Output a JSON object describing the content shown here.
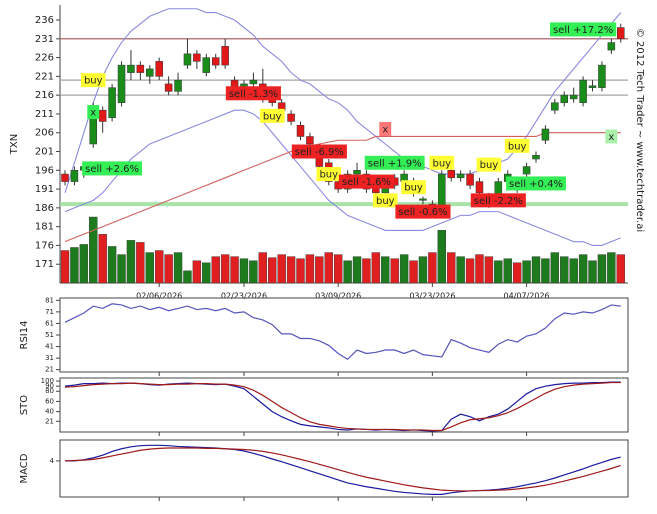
{
  "chart_data": [
    {
      "type": "candlestick",
      "y_label": "TXN",
      "categories": [
        null,
        null,
        null,
        null,
        null,
        null,
        null,
        null,
        null,
        null,
        "02/06/2026",
        null,
        null,
        null,
        null,
        null,
        null,
        null,
        null,
        "02/23/2026",
        null,
        null,
        null,
        null,
        null,
        null,
        null,
        null,
        null,
        "03/09/2026",
        null,
        null,
        null,
        null,
        null,
        null,
        null,
        null,
        null,
        "03/23/2026",
        null,
        null,
        null,
        null,
        null,
        null,
        null,
        null,
        null,
        "04/07/2026",
        null,
        null,
        null,
        null,
        null,
        null,
        null,
        null,
        null,
        null
      ],
      "open": [
        195,
        193,
        196,
        203,
        212,
        210,
        214,
        222,
        224,
        221,
        225,
        219,
        217,
        224,
        227,
        222,
        226,
        229,
        220,
        218,
        219,
        219,
        216,
        214,
        211,
        208,
        205,
        202,
        198,
        193,
        191,
        195,
        195,
        192,
        190,
        194,
        193,
        193,
        188,
        187,
        186,
        196,
        194,
        195,
        193,
        189,
        189,
        193,
        193,
        195,
        199,
        204,
        212,
        214,
        215,
        214,
        218,
        218,
        228,
        234
      ],
      "high": [
        196,
        197,
        198,
        214,
        213,
        219,
        225,
        228,
        225,
        224,
        226,
        221,
        222,
        231,
        228,
        227,
        227,
        231,
        221,
        220,
        222,
        223,
        217,
        215,
        212,
        209,
        206,
        203,
        199,
        194,
        196,
        198,
        196,
        193,
        194,
        195,
        196,
        194,
        189,
        188,
        196,
        197,
        196,
        196,
        194,
        190,
        194,
        196,
        194,
        198,
        201,
        208,
        215,
        217,
        218,
        221,
        220,
        225,
        231,
        235
      ],
      "low": [
        192,
        192,
        194,
        202,
        206,
        209,
        213,
        220,
        220,
        219,
        220,
        216,
        216,
        223,
        223,
        221,
        223,
        223,
        217,
        217,
        218,
        214,
        213,
        211,
        208,
        204,
        202,
        196,
        192,
        190,
        190,
        194,
        190,
        188,
        189,
        191,
        192,
        189,
        187,
        185,
        185,
        193,
        193,
        191,
        189,
        186,
        188,
        192,
        190,
        194,
        198,
        203,
        211,
        213,
        214,
        213,
        217,
        217,
        227,
        230
      ],
      "close": [
        193,
        196,
        197,
        212,
        209,
        218,
        224,
        224,
        222,
        223,
        221,
        217,
        220,
        227,
        225,
        226,
        224,
        224,
        218,
        219,
        220,
        216,
        214,
        212,
        209,
        205,
        203,
        197,
        193,
        191,
        195,
        196,
        191,
        190,
        193,
        192,
        195,
        190,
        188.4,
        186,
        195,
        194,
        195,
        192,
        190,
        188,
        193,
        195,
        191,
        197,
        200,
        207,
        214,
        216,
        216,
        220,
        218.5,
        224,
        230,
        231
      ],
      "volume": [
        32,
        35,
        38,
        65,
        48,
        36,
        28,
        42,
        40,
        30,
        32,
        28,
        30,
        12,
        22,
        20,
        26,
        28,
        26,
        24,
        22,
        30,
        25,
        28,
        26,
        24,
        28,
        26,
        30,
        28,
        22,
        26,
        24,
        30,
        26,
        24,
        28,
        22,
        26,
        30,
        52,
        30,
        26,
        24,
        28,
        26,
        22,
        24,
        20,
        22,
        26,
        24,
        30,
        26,
        24,
        28,
        22,
        28,
        30,
        28
      ],
      "up_color": "#1a8c1a",
      "down_color": "#e01818",
      "ylim": [
        166,
        240
      ],
      "yticks": [
        171,
        176,
        181,
        186,
        191,
        196,
        201,
        206,
        211,
        216,
        221,
        226,
        231,
        236
      ],
      "series": [
        {
          "color": "#8a8ae0",
          "values": [
            190,
            198,
            206,
            214,
            221,
            226,
            230,
            233,
            235,
            237,
            238,
            239,
            239,
            239,
            239,
            238,
            238,
            237,
            236,
            234,
            232,
            229,
            227,
            225,
            222,
            220,
            219,
            217,
            215,
            214,
            212,
            209,
            207,
            205,
            203,
            201,
            199,
            198,
            197,
            196,
            195,
            195,
            195,
            195,
            196,
            197,
            198,
            199,
            202,
            205,
            209,
            213,
            217,
            220,
            223,
            226,
            229,
            232,
            235,
            238
          ]
        },
        {
          "color": "#8a8ae0",
          "values": [
            185,
            186,
            187,
            188,
            190,
            193,
            196,
            199,
            201,
            203,
            204,
            205,
            206,
            207,
            208,
            209,
            210,
            211,
            212,
            212,
            211,
            209,
            206,
            203,
            200,
            197,
            194,
            191,
            188,
            186,
            184,
            183,
            182,
            181,
            180,
            180,
            180,
            180,
            180,
            181,
            182,
            183,
            184,
            184,
            185,
            185,
            185,
            184,
            183,
            182,
            181,
            180,
            179,
            178,
            177,
            177,
            176,
            176,
            177,
            178
          ]
        },
        {
          "color": "#d06060",
          "values": [
            177,
            178,
            179,
            180,
            181,
            182,
            183,
            184,
            185,
            186,
            187,
            188,
            189,
            190,
            191,
            192,
            193,
            194,
            195,
            196,
            197,
            198,
            199,
            200,
            201,
            202,
            202.5,
            203,
            203.5,
            204,
            204,
            204,
            204,
            205,
            205,
            205,
            205,
            205,
            205,
            205,
            205,
            205,
            205,
            205,
            205,
            205,
            205,
            205,
            205,
            205,
            205,
            206,
            206,
            206,
            206,
            206,
            206,
            206,
            206,
            206
          ]
        }
      ],
      "levels": [
        {
          "value": 231,
          "color": "#b07070"
        },
        {
          "value": 220,
          "color": "#aaaaaa"
        },
        {
          "value": 216,
          "color": "#aaaaaa"
        },
        {
          "value": 187,
          "color": "#9fe09f"
        }
      ],
      "signals": [
        {
          "label": "buy",
          "index": 3,
          "value": 220,
          "color": "#ffff33"
        },
        {
          "label": "x",
          "index": 3,
          "value": 211.5,
          "color": "#33ee55"
        },
        {
          "label": "sell +2.6%",
          "index": 5,
          "value": 196.5,
          "color": "#33ee55"
        },
        {
          "label": "sell -1.3%",
          "index": 20,
          "value": 216.5,
          "color": "#ee2222"
        },
        {
          "label": "buy",
          "index": 22,
          "value": 210.5,
          "color": "#ffff33"
        },
        {
          "label": "x",
          "index": 34,
          "value": 207,
          "color": "#ff7777"
        },
        {
          "label": "sell -6.9%",
          "index": 27,
          "value": 201,
          "color": "#ee2222"
        },
        {
          "label": "sell +1.9%",
          "index": 35,
          "value": 198,
          "color": "#33ee55"
        },
        {
          "label": "buy",
          "index": 28,
          "value": 195,
          "color": "#ffff33"
        },
        {
          "label": "buy",
          "index": 40,
          "value": 198,
          "color": "#ffff33"
        },
        {
          "label": "sell -1.6%",
          "index": 32,
          "value": 193,
          "color": "#ee2222"
        },
        {
          "label": "buy",
          "index": 34,
          "value": 188,
          "color": "#ffff33"
        },
        {
          "label": "buy",
          "index": 37,
          "value": 191.5,
          "color": "#ffff33"
        },
        {
          "label": "sell -0.6%",
          "index": 38,
          "value": 185,
          "color": "#ee2222"
        },
        {
          "label": "buy",
          "index": 45,
          "value": 197.5,
          "color": "#ffff33"
        },
        {
          "label": "buy",
          "index": 48,
          "value": 202.5,
          "color": "#ffff33"
        },
        {
          "label": "sell -2.2%",
          "index": 46,
          "value": 188,
          "color": "#ee2222"
        },
        {
          "label": "sell +0.4%",
          "index": 50,
          "value": 192.5,
          "color": "#33ee55"
        },
        {
          "label": "sell +17.2%",
          "index": 55,
          "value": 233.5,
          "color": "#33ee55"
        },
        {
          "label": "x",
          "index": 58,
          "value": 205,
          "color": "#aaf0aa"
        }
      ],
      "copyright": "© 2012 Tech Trader ~ www.techtrader.ai"
    },
    {
      "type": "line",
      "y_label": "RSI14",
      "ylim": [
        19,
        83
      ],
      "yticks": [
        21,
        31,
        41,
        51,
        61,
        71,
        81
      ],
      "series": [
        {
          "color": "#5555bb",
          "values": [
            62,
            66,
            70,
            76,
            74,
            78,
            77,
            74,
            76,
            73,
            75,
            72,
            74,
            76,
            73,
            74,
            72,
            74,
            70,
            71,
            66,
            64,
            60,
            52,
            52,
            48,
            48,
            46,
            42,
            35,
            30,
            38,
            35,
            36,
            38,
            38,
            35,
            38,
            34,
            33,
            32,
            47,
            44,
            40,
            38,
            36,
            43,
            47,
            45,
            50,
            52,
            57,
            65,
            70,
            69,
            71,
            70,
            73,
            77,
            76
          ]
        }
      ]
    },
    {
      "type": "line",
      "y_label": "STO",
      "ylim": [
        0,
        106
      ],
      "yticks": [
        21,
        40,
        60,
        80,
        90,
        100
      ],
      "series": [
        {
          "color": "#1a1aa0",
          "values": [
            90,
            92,
            95,
            95,
            96,
            95,
            96,
            96,
            95,
            93,
            92,
            94,
            95,
            96,
            95,
            94,
            93,
            94,
            90,
            85,
            70,
            55,
            40,
            30,
            22,
            15,
            12,
            10,
            8,
            5,
            4,
            6,
            5,
            4,
            5,
            4,
            3,
            4,
            3,
            2,
            3,
            25,
            35,
            30,
            22,
            30,
            35,
            45,
            60,
            75,
            85,
            90,
            93,
            95,
            96,
            96,
            97,
            97,
            98,
            98
          ]
        },
        {
          "color": "#a01a1a",
          "values": [
            88,
            89,
            91,
            93,
            94,
            95,
            95,
            96,
            95,
            94,
            93,
            93,
            94,
            94,
            95,
            95,
            94,
            94,
            92,
            89,
            82,
            72,
            60,
            48,
            38,
            28,
            20,
            15,
            12,
            9,
            7,
            6,
            5,
            5,
            5,
            5,
            4,
            4,
            4,
            3,
            3,
            10,
            18,
            24,
            26,
            28,
            32,
            38,
            46,
            56,
            66,
            76,
            84,
            89,
            92,
            94,
            95,
            96,
            97,
            97
          ]
        }
      ]
    },
    {
      "type": "line",
      "y_label": "MACD",
      "ylim": [
        -5.5,
        9.5
      ],
      "yticks": [
        4
      ],
      "series": [
        {
          "color": "#1a1aa0",
          "values": [
            4,
            4,
            4.3,
            4.8,
            5.5,
            6.5,
            7.2,
            7.7,
            8,
            8.1,
            8.1,
            8,
            7.8,
            7.7,
            7.6,
            7.5,
            7.4,
            7.2,
            7,
            6.6,
            6,
            5.3,
            4.5,
            3.8,
            3,
            2.2,
            1.4,
            0.6,
            -0.2,
            -1,
            -1.8,
            -2.3,
            -2.8,
            -3.2,
            -3.6,
            -4,
            -4.3,
            -4.5,
            -4.7,
            -4.8,
            -4.8,
            -4.4,
            -4.1,
            -3.9,
            -3.8,
            -3.7,
            -3.5,
            -3.2,
            -2.8,
            -2.3,
            -1.8,
            -1.2,
            -0.5,
            0.3,
            1.1,
            1.9,
            2.8,
            3.6,
            4.4,
            5
          ]
        },
        {
          "color": "#a01a1a",
          "values": [
            4,
            4.1,
            4.2,
            4.4,
            4.8,
            5.3,
            5.8,
            6.3,
            6.8,
            7.1,
            7.3,
            7.4,
            7.4,
            7.4,
            7.4,
            7.3,
            7.3,
            7.2,
            7.1,
            7,
            6.8,
            6.5,
            6.1,
            5.6,
            5,
            4.4,
            3.8,
            3.1,
            2.4,
            1.7,
            1,
            0.3,
            -0.3,
            -0.8,
            -1.3,
            -1.8,
            -2.3,
            -2.7,
            -3.1,
            -3.4,
            -3.7,
            -3.8,
            -3.9,
            -3.9,
            -3.8,
            -3.8,
            -3.7,
            -3.6,
            -3.4,
            -3.1,
            -2.8,
            -2.4,
            -1.9,
            -1.3,
            -0.7,
            -0.1,
            0.6,
            1.3,
            2,
            2.8
          ]
        }
      ]
    }
  ]
}
